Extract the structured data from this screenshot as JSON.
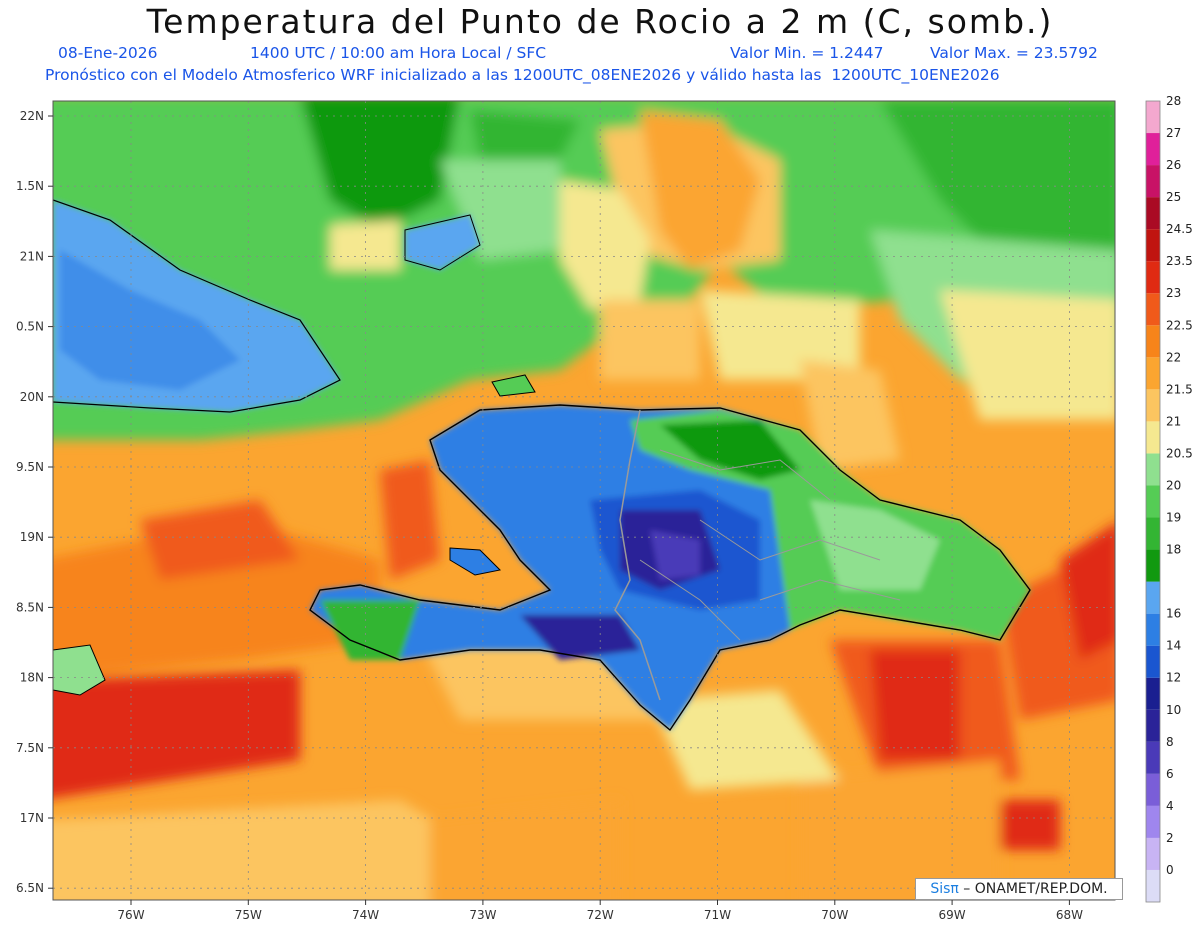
{
  "header": {
    "title": "Temperatura del Punto de Rocio a 2 m (C, somb.)",
    "date": "08-Ene-2026",
    "time": "1400 UTC / 10:00 am Hora Local / SFC",
    "min_value": "Valor Min. = 1.2447",
    "max_value": "Valor Max. = 23.5792",
    "model_note": "Pronóstico con el Modelo Atmosferico WRF inicializado a las 1200UTC_08ENE2026 y válido hasta las  1200UTC_10ENE2026"
  },
  "axes": {
    "lat_labels": [
      "22N",
      "1.5N",
      "21N",
      "0.5N",
      "20N",
      "9.5N",
      "19N",
      "8.5N",
      "18N",
      "7.5N",
      "17N",
      "6.5N"
    ],
    "lon_labels": [
      "76W",
      "75W",
      "74W",
      "73W",
      "72W",
      "71W",
      "70W",
      "69W",
      "68W"
    ]
  },
  "colorbar": [
    {
      "label": "0",
      "color": "#dcdcf6"
    },
    {
      "label": "2",
      "color": "#c8b4f4"
    },
    {
      "label": "4",
      "color": "#9f86ee"
    },
    {
      "label": "6",
      "color": "#7a5ed8"
    },
    {
      "label": "8",
      "color": "#4a3ab8"
    },
    {
      "label": "10",
      "color": "#2a2398"
    },
    {
      "label": "12",
      "color": "#1a1f90"
    },
    {
      "label": "14",
      "color": "#1a56d0"
    },
    {
      "label": "16",
      "color": "#2d7fe4"
    },
    {
      "label": "",
      "color": "#5aa6f0"
    },
    {
      "label": "18",
      "color": "#119910"
    },
    {
      "label": "19",
      "color": "#33b533"
    },
    {
      "label": "20",
      "color": "#55cc55"
    },
    {
      "label": "20.5",
      "color": "#8fe08f"
    },
    {
      "label": "21",
      "color": "#f5e890"
    },
    {
      "label": "21.5",
      "color": "#fcc560"
    },
    {
      "label": "22",
      "color": "#fba530"
    },
    {
      "label": "22.5",
      "color": "#f7841a"
    },
    {
      "label": "23",
      "color": "#f05a1a"
    },
    {
      "label": "23.5",
      "color": "#e02a12"
    },
    {
      "label": "24.5",
      "color": "#c01410"
    },
    {
      "label": "25",
      "color": "#aa0a24"
    },
    {
      "label": "26",
      "color": "#c81266"
    },
    {
      "label": "27",
      "color": "#e0209a"
    },
    {
      "label": "28",
      "color": "#f4a8cf"
    }
  ],
  "credit": {
    "sis": "Sisπ",
    "rest": " – ONAMET/REP.DOM."
  }
}
